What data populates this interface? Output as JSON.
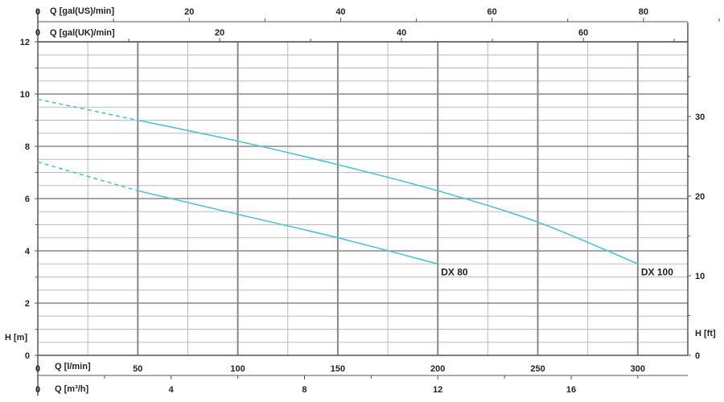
{
  "chart_data": {
    "type": "line",
    "xlabel": "Q [l/min]",
    "ylabel": "H [m]",
    "xlim": [
      0,
      300
    ],
    "ylim": [
      0,
      12
    ],
    "x_ticks": [
      0,
      50,
      100,
      150,
      200,
      250,
      300
    ],
    "y_ticks": [
      0,
      2,
      4,
      6,
      8,
      10,
      12
    ],
    "grid": true,
    "colors": {
      "curve": "#4fc3d3",
      "grid_major": "#888888",
      "grid_minor": "#bbbbbb",
      "axis": "#555555"
    },
    "secondary_axes": {
      "right_label": "H [ft]",
      "right_ticks": [
        0,
        10,
        20,
        30
      ],
      "bottom2_label": "Q [m³/h]",
      "bottom2_ticks": [
        0,
        4,
        8,
        12,
        16
      ],
      "top1_label": "Q [gal(US)/min]",
      "top1_ticks": [
        0,
        20,
        40,
        60,
        80
      ],
      "top2_label": "Q [gal(UK)/min]",
      "top2_ticks": [
        0,
        20,
        40,
        60
      ]
    },
    "series": [
      {
        "name": "DX 80",
        "x": [
          50,
          100,
          150,
          200
        ],
        "y": [
          6.3,
          5.4,
          4.5,
          3.5
        ],
        "extrapolated_x": [
          0,
          50
        ],
        "extrapolated_y": [
          7.4,
          6.3
        ]
      },
      {
        "name": "DX 100",
        "x": [
          50,
          100,
          150,
          200,
          250,
          300
        ],
        "y": [
          9.0,
          8.2,
          7.3,
          6.3,
          5.1,
          3.5
        ],
        "extrapolated_x": [
          0,
          50
        ],
        "extrapolated_y": [
          9.8,
          9.0
        ]
      }
    ]
  }
}
